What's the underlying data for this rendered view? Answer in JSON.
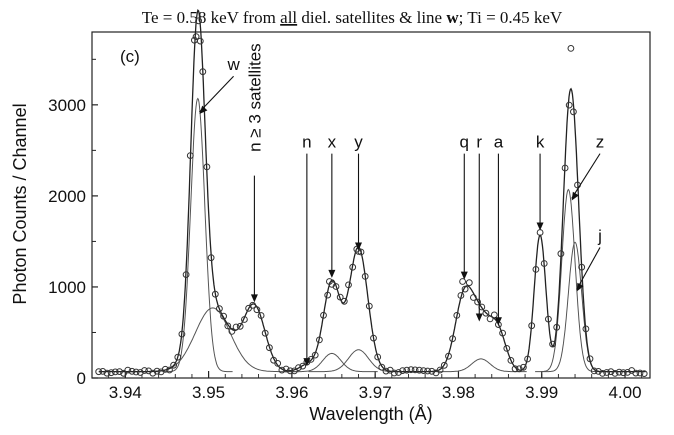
{
  "chart_data": {
    "type": "line",
    "title_parts": [
      "Te = 0.58 keV from ",
      "all",
      " diel. satellites & line ",
      "w",
      "; Ti = 0.45 keV"
    ],
    "panel_label": "(c)",
    "xlabel": "Wavelength (Å)",
    "ylabel": "Photon Counts / Channel",
    "xlim": [
      3.936,
      4.003
    ],
    "ylim": [
      0,
      3800
    ],
    "x_ticks": [
      3.94,
      3.95,
      3.96,
      3.97,
      3.98,
      3.99,
      4.0
    ],
    "x_tick_labels": [
      "3.94",
      "3.95",
      "3.96",
      "3.97",
      "3.98",
      "3.99",
      "4.00"
    ],
    "y_ticks": [
      0,
      1000,
      2000,
      3000
    ],
    "y_tick_labels": [
      "0",
      "1000",
      "2000",
      "3000"
    ],
    "baseline": 70,
    "fit_peaks": [
      {
        "x0": 3.9487,
        "amp": 3480,
        "sigma": 0.00085
      },
      {
        "x0": 3.9505,
        "amp": 700,
        "sigma": 0.0021
      },
      {
        "x0": 3.9555,
        "amp": 700,
        "sigma": 0.0013
      },
      {
        "x0": 3.962,
        "amp": 80,
        "sigma": 0.001
      },
      {
        "x0": 3.9648,
        "amp": 780,
        "sigma": 0.001
      },
      {
        "x0": 3.9648,
        "amp": 200,
        "sigma": 0.0011
      },
      {
        "x0": 3.968,
        "amp": 1120,
        "sigma": 0.0011
      },
      {
        "x0": 3.968,
        "amp": 240,
        "sigma": 0.0012
      },
      {
        "x0": 3.9807,
        "amp": 820,
        "sigma": 0.0011
      },
      {
        "x0": 3.9827,
        "amp": 500,
        "sigma": 0.0011
      },
      {
        "x0": 3.9847,
        "amp": 440,
        "sigma": 0.001
      },
      {
        "x0": 3.9898,
        "amp": 1500,
        "sigma": 0.0007
      },
      {
        "x0": 3.9932,
        "amp": 2080,
        "sigma": 0.0008
      },
      {
        "x0": 3.994,
        "amp": 1420,
        "sigma": 0.0008
      }
    ],
    "components": [
      {
        "name": "w",
        "x0": 3.9487,
        "amp": 3000,
        "sigma": 0.00085
      },
      {
        "name": "n ≥ 3 satellites",
        "x0": 3.9505,
        "amp": 700,
        "sigma": 0.0021
      },
      {
        "name": "x",
        "x0": 3.9648,
        "amp": 200,
        "sigma": 0.0011
      },
      {
        "name": "y",
        "x0": 3.968,
        "amp": 240,
        "sigma": 0.0012
      },
      {
        "name": "r",
        "x0": 3.9827,
        "amp": 140,
        "sigma": 0.0011
      },
      {
        "name": "z",
        "x0": 3.9932,
        "amp": 2000,
        "sigma": 0.0008
      },
      {
        "name": "j",
        "x0": 3.994,
        "amp": 1420,
        "sigma": 0.0008
      }
    ],
    "data_points": {
      "x_start": 3.9368,
      "x_end": 4.0025,
      "step": 0.0005,
      "spikes": [
        {
          "x": 3.9485,
          "y": 3750
        },
        {
          "x": 3.949,
          "y": 3700
        },
        {
          "x": 3.9935,
          "y": 3620
        },
        {
          "x": 3.968,
          "y": 1390
        },
        {
          "x": 3.9805,
          "y": 1060
        },
        {
          "x": 3.9645,
          "y": 1060
        }
      ]
    },
    "peak_labels": [
      {
        "text": "w",
        "label_x": 3.953,
        "label_y": 3380,
        "tip_x": 3.9489,
        "tip_y": 2900
      },
      {
        "text": "n ≥ 3 satellites",
        "label_x": 3.9555,
        "label_y": 2750,
        "tip_x": 3.9555,
        "tip_y": 830
      },
      {
        "text": "n",
        "label_x": 3.9618,
        "label_y": 2530,
        "tip_x": 3.9618,
        "tip_y": 130
      },
      {
        "text": "x",
        "label_x": 3.9648,
        "label_y": 2530,
        "tip_x": 3.9648,
        "tip_y": 1100
      },
      {
        "text": "y",
        "label_x": 3.968,
        "label_y": 2530,
        "tip_x": 3.968,
        "tip_y": 1400
      },
      {
        "text": "q",
        "label_x": 3.9807,
        "label_y": 2530,
        "tip_x": 3.9807,
        "tip_y": 1080
      },
      {
        "text": "r",
        "label_x": 3.9825,
        "label_y": 2530,
        "tip_x": 3.9825,
        "tip_y": 620
      },
      {
        "text": "a",
        "label_x": 3.9848,
        "label_y": 2530,
        "tip_x": 3.9848,
        "tip_y": 580
      },
      {
        "text": "k",
        "label_x": 3.9898,
        "label_y": 2530,
        "tip_x": 3.9898,
        "tip_y": 1620
      },
      {
        "text": "z",
        "label_x": 3.997,
        "label_y": 2530,
        "tip_x": 3.9936,
        "tip_y": 1950
      },
      {
        "text": "j",
        "label_x": 3.997,
        "label_y": 1500,
        "tip_x": 3.9942,
        "tip_y": 950
      }
    ]
  }
}
